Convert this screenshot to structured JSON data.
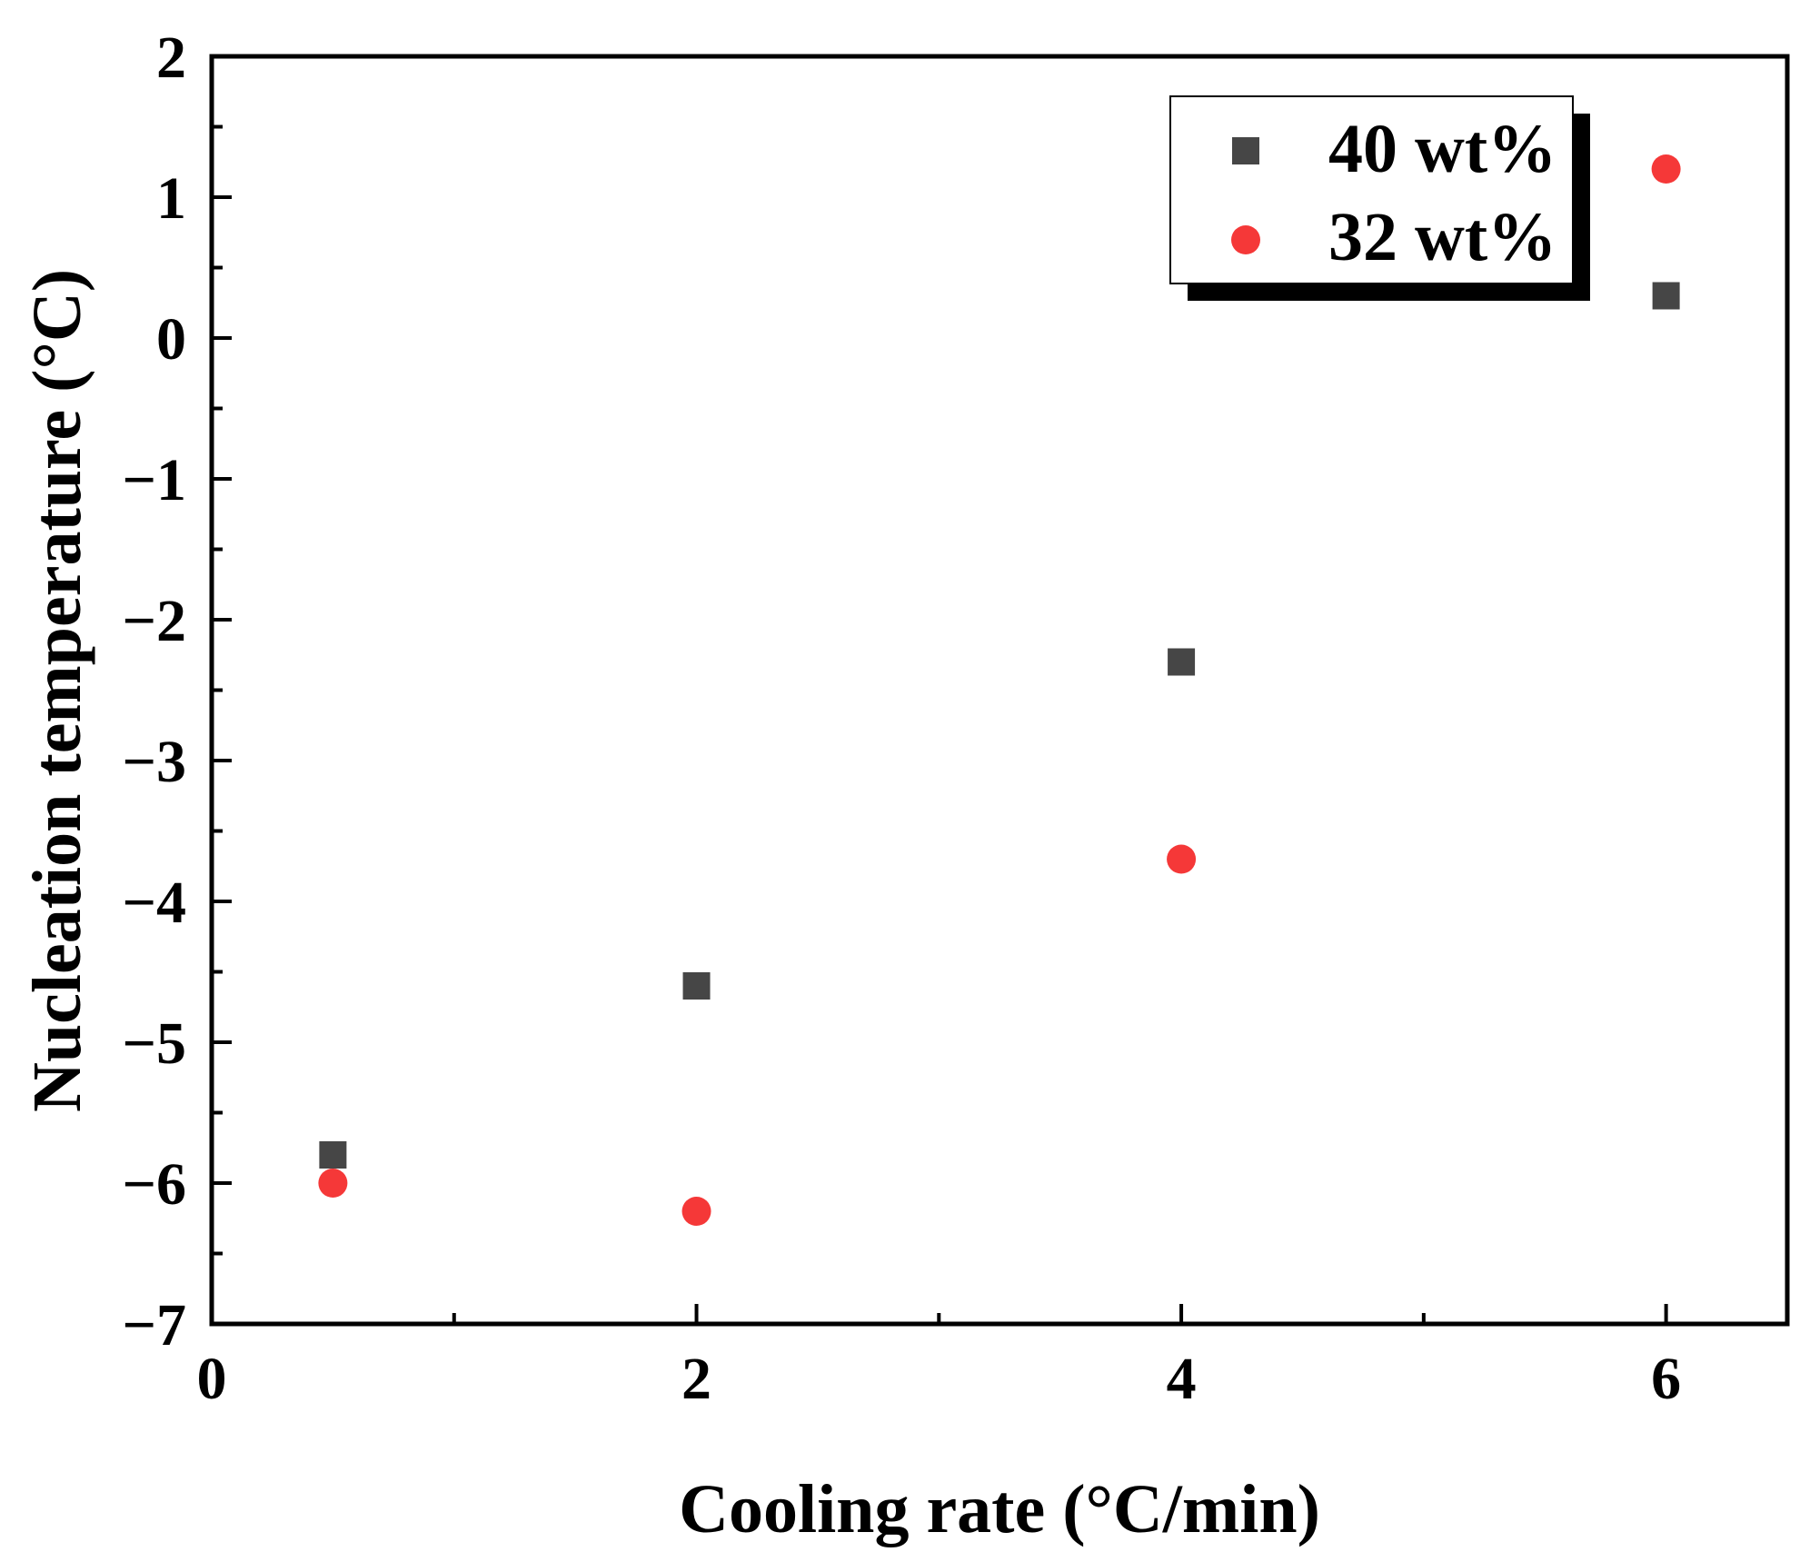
{
  "chart_data": {
    "type": "scatter",
    "title": "",
    "xlabel": "Cooling rate (°C/min)",
    "ylabel": "Nucleation temperature (°C)",
    "xlim": [
      0,
      6.5
    ],
    "ylim": [
      -7,
      2
    ],
    "x_ticks": [
      0,
      2,
      4,
      6
    ],
    "x_tick_labels": [
      "0",
      "2",
      "4",
      "6"
    ],
    "x_minor_ticks": [
      1,
      3,
      5
    ],
    "y_ticks": [
      2,
      1,
      0,
      -1,
      -2,
      -3,
      -4,
      -5,
      -6,
      -7
    ],
    "y_tick_labels": [
      "2",
      "1",
      "0",
      "−1",
      "−2",
      "−3",
      "−4",
      "−5",
      "−6",
      "−7"
    ],
    "y_minor_ticks": [
      1.5,
      0.5,
      -0.5,
      -1.5,
      -2.5,
      -3.5,
      -4.5,
      -5.5,
      -6.5
    ],
    "grid": false,
    "legend_position": "top-right",
    "series": [
      {
        "name": "40 wt%",
        "marker": "square",
        "color": "#464646",
        "points": [
          {
            "x": 0.5,
            "y": -5.8
          },
          {
            "x": 2,
            "y": -4.6
          },
          {
            "x": 4,
            "y": -2.3
          },
          {
            "x": 6,
            "y": 0.3
          }
        ]
      },
      {
        "name": "32 wt%",
        "marker": "circle",
        "color": "#f53838",
        "points": [
          {
            "x": 0.5,
            "y": -6.0
          },
          {
            "x": 2,
            "y": -6.2
          },
          {
            "x": 4,
            "y": -3.7
          },
          {
            "x": 6,
            "y": 1.2
          }
        ]
      }
    ]
  }
}
